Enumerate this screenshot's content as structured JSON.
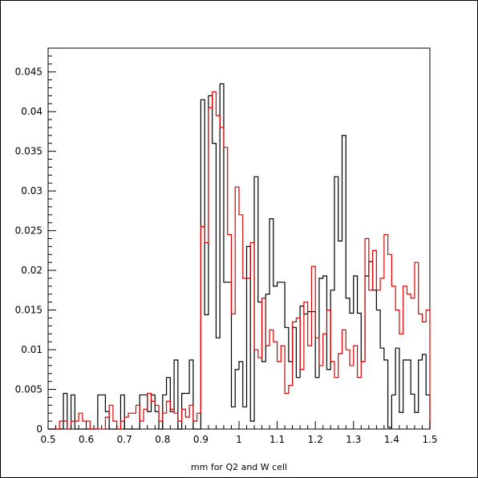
{
  "chart_data": {
    "type": "histogram",
    "title": "",
    "xlabel": "mm for Q2 and W cell",
    "ylabel": "",
    "xlim": [
      0.5,
      1.5
    ],
    "ylim": [
      0,
      0.048
    ],
    "bin_width": 0.01,
    "x_ticks": [
      {
        "value": 0.5,
        "label": "0.5"
      },
      {
        "value": 0.6,
        "label": "0.6"
      },
      {
        "value": 0.7,
        "label": "0.7"
      },
      {
        "value": 0.8,
        "label": "0.8"
      },
      {
        "value": 0.9,
        "label": "0.9"
      },
      {
        "value": 1.0,
        "label": "1"
      },
      {
        "value": 1.1,
        "label": "1.1"
      },
      {
        "value": 1.2,
        "label": "1.2"
      },
      {
        "value": 1.3,
        "label": "1.3"
      },
      {
        "value": 1.4,
        "label": "1.4"
      },
      {
        "value": 1.5,
        "label": "1.5"
      }
    ],
    "y_ticks": [
      {
        "value": 0,
        "label": "0"
      },
      {
        "value": 0.005,
        "label": "0.005"
      },
      {
        "value": 0.01,
        "label": "0.01"
      },
      {
        "value": 0.015,
        "label": "0.015"
      },
      {
        "value": 0.02,
        "label": "0.02"
      },
      {
        "value": 0.025,
        "label": "0.025"
      },
      {
        "value": 0.03,
        "label": "0.03"
      },
      {
        "value": 0.035,
        "label": "0.035"
      },
      {
        "value": 0.04,
        "label": "0.04"
      },
      {
        "value": 0.045,
        "label": "0.045"
      }
    ],
    "series": [
      {
        "color": "#000000",
        "values": [
          0,
          0,
          0,
          0,
          0.0045,
          0,
          0.0043,
          0,
          0,
          0,
          0,
          0,
          0,
          0.0043,
          0.0043,
          0.0022,
          0,
          0,
          0,
          0.0043,
          0,
          0,
          0,
          0,
          0.0043,
          0.0043,
          0.0022,
          0.0043,
          0.0022,
          0,
          0.0043,
          0.0065,
          0.0022,
          0.0087,
          0,
          0.0045,
          0.0045,
          0.0087,
          0,
          0,
          0.0415,
          0.0144,
          0.042,
          0.036,
          0.0115,
          0.0435,
          0.0185,
          0.0185,
          0.0028,
          0.0075,
          0.0085,
          0.0028,
          0.023,
          0.001,
          0.0318,
          0.016,
          0.0085,
          0.017,
          0.0265,
          0.018,
          0.0185,
          0.0185,
          0.0128,
          0.0085,
          0.0128,
          0.0065,
          0.0155,
          0.0145,
          0.0148,
          0.0148,
          0.0065,
          0.019,
          0.0193,
          0.0075,
          0.0175,
          0.0318,
          0.0237,
          0.037,
          0.0165,
          0.0146,
          0.0193,
          0.0146,
          0.0085,
          0.0193,
          0.0211,
          0.0175,
          0.015,
          0.0102,
          0.0087,
          0.0002,
          0.0043,
          0.0102,
          0.0021,
          0.0087,
          0.0087,
          0.0044,
          0.0021,
          0.0087,
          0.0094,
          0.0043
        ]
      },
      {
        "color": "#dd0000",
        "values": [
          0,
          0,
          0,
          0.001,
          0.001,
          0,
          0.001,
          0.001,
          0.002,
          0.001,
          0.001,
          0,
          0,
          0,
          0,
          0.0015,
          0.003,
          0.001,
          0,
          0.001,
          0.0015,
          0.002,
          0.002,
          0.003,
          0.001,
          0.0025,
          0.0045,
          0.0035,
          0.003,
          0.001,
          0.002,
          0.0035,
          0.0025,
          0.002,
          0.001,
          0.0025,
          0.0015,
          0.003,
          0.001,
          0.002,
          0.0255,
          0.0235,
          0.0405,
          0.0425,
          0.0395,
          0.038,
          0.0355,
          0.0245,
          0.0145,
          0.0305,
          0.027,
          0.019,
          0.019,
          0.0235,
          0.01,
          0.009,
          0.0165,
          0.0105,
          0.0125,
          0.011,
          0.0085,
          0.0105,
          0.0045,
          0.0055,
          0.0135,
          0.014,
          0.0075,
          0.016,
          0.0105,
          0.0205,
          0.0115,
          0.008,
          0.012,
          0.015,
          0.0085,
          0.0065,
          0.0095,
          0.0125,
          0.01,
          0.008,
          0.0105,
          0.0065,
          0.0085,
          0.024,
          0.0175,
          0.0225,
          0.0175,
          0.019,
          0.0245,
          0.022,
          0.018,
          0.015,
          0.012,
          0.018,
          0.017,
          0.0165,
          0.021,
          0.0145,
          0.0135,
          0.015
        ]
      }
    ]
  }
}
